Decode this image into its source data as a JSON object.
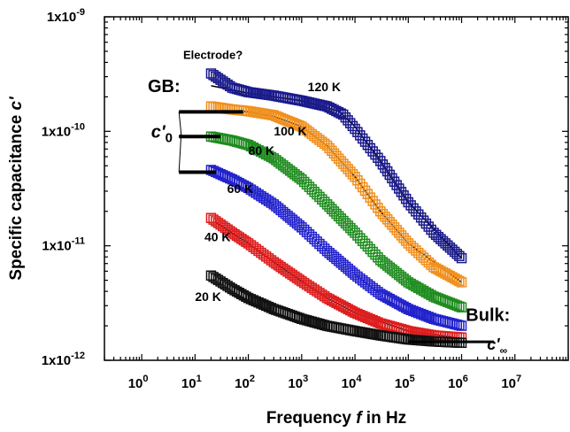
{
  "chart_data": {
    "type": "scatter",
    "title": "",
    "xlabel": {
      "pre": "Frequency ",
      "var": "f",
      "post": " in Hz"
    },
    "ylabel": {
      "pre": "Specific capacitance ",
      "var": "c'"
    },
    "x_scale": "log",
    "y_scale": "log",
    "xlim": [
      0.2,
      100000000
    ],
    "ylim": [
      1e-12,
      1e-09
    ],
    "x_ticks": [
      {
        "value": 1,
        "base": "10",
        "exp": "0"
      },
      {
        "value": 10,
        "base": "10",
        "exp": "1"
      },
      {
        "value": 100,
        "base": "10",
        "exp": "2"
      },
      {
        "value": 1000,
        "base": "10",
        "exp": "3"
      },
      {
        "value": 10000,
        "base": "10",
        "exp": "4"
      },
      {
        "value": 100000,
        "base": "10",
        "exp": "5"
      },
      {
        "value": 1000000,
        "base": "10",
        "exp": "6"
      },
      {
        "value": 10000000,
        "base": "10",
        "exp": "7"
      }
    ],
    "y_ticks": [
      {
        "value": 1e-12,
        "base": "1x10",
        "exp": "-12"
      },
      {
        "value": 1e-11,
        "base": "1x10",
        "exp": "-11"
      },
      {
        "value": 1e-10,
        "base": "1x10",
        "exp": "-10"
      },
      {
        "value": 1e-09,
        "base": "1x10",
        "exp": "-9"
      }
    ],
    "marker": "open-square",
    "series": [
      {
        "name": "120 K",
        "color": "#1a1a8c",
        "points": [
          [
            20,
            3.2e-10
          ],
          [
            50,
            2.4e-10
          ],
          [
            100,
            2.2e-10
          ],
          [
            300,
            2.05e-10
          ],
          [
            1000,
            1.85e-10
          ],
          [
            3000,
            1.65e-10
          ],
          [
            6000,
            1.4e-10
          ],
          [
            10000,
            1.05e-10
          ],
          [
            30000,
            5.5e-11
          ],
          [
            100000,
            2.4e-11
          ],
          [
            300000,
            1.3e-11
          ],
          [
            1000000,
            7.8e-12
          ]
        ],
        "fit": [
          [
            20,
            2.5e-10
          ],
          [
            100,
            2.15e-10
          ],
          [
            1000,
            1.85e-10
          ],
          [
            5000,
            1.5e-10
          ],
          [
            10000,
            1.1e-10
          ],
          [
            30000,
            5.5e-11
          ],
          [
            100000,
            2.4e-11
          ],
          [
            1000000,
            7.8e-12
          ]
        ]
      },
      {
        "name": "100 K",
        "color": "#f0901e",
        "points": [
          [
            20,
            1.65e-10
          ],
          [
            50,
            1.55e-10
          ],
          [
            100,
            1.5e-10
          ],
          [
            300,
            1.38e-10
          ],
          [
            1000,
            1.1e-10
          ],
          [
            3000,
            7.5e-11
          ],
          [
            10000,
            4e-11
          ],
          [
            30000,
            2e-11
          ],
          [
            100000,
            1.05e-11
          ],
          [
            300000,
            6.5e-12
          ],
          [
            1000000,
            4.8e-12
          ]
        ],
        "fit": [
          [
            30,
            1.52e-10
          ],
          [
            100,
            1.48e-10
          ],
          [
            300,
            1.35e-10
          ],
          [
            1000,
            1.1e-10
          ],
          [
            3000,
            7.5e-11
          ],
          [
            10000,
            4e-11
          ],
          [
            30000,
            2e-11
          ],
          [
            100000,
            1.05e-11
          ],
          [
            1000000,
            4.8e-12
          ]
        ]
      },
      {
        "name": "80 K",
        "color": "#1e8c1e",
        "points": [
          [
            20,
            9e-11
          ],
          [
            50,
            8.3e-11
          ],
          [
            100,
            7.6e-11
          ],
          [
            300,
            5.8e-11
          ],
          [
            1000,
            3.8e-11
          ],
          [
            3000,
            2.3e-11
          ],
          [
            10000,
            1.3e-11
          ],
          [
            30000,
            7.5e-12
          ],
          [
            100000,
            4.8e-12
          ],
          [
            300000,
            3.6e-12
          ],
          [
            1000000,
            2.9e-12
          ]
        ]
      },
      {
        "name": "60 K",
        "color": "#2222cc",
        "points": [
          [
            20,
            4.6e-11
          ],
          [
            50,
            3.8e-11
          ],
          [
            100,
            3.2e-11
          ],
          [
            300,
            2.3e-11
          ],
          [
            1000,
            1.45e-11
          ],
          [
            3000,
            9e-12
          ],
          [
            10000,
            5.6e-12
          ],
          [
            30000,
            3.8e-12
          ],
          [
            100000,
            2.8e-12
          ],
          [
            300000,
            2.3e-12
          ],
          [
            1000000,
            2e-12
          ]
        ]
      },
      {
        "name": "40 K",
        "color": "#dd1e1e",
        "points": [
          [
            20,
            1.75e-11
          ],
          [
            50,
            1.3e-11
          ],
          [
            100,
            1.05e-11
          ],
          [
            300,
            7.2e-12
          ],
          [
            1000,
            4.9e-12
          ],
          [
            3000,
            3.5e-12
          ],
          [
            10000,
            2.6e-12
          ],
          [
            30000,
            2.1e-12
          ],
          [
            100000,
            1.8e-12
          ],
          [
            300000,
            1.65e-12
          ],
          [
            1000000,
            1.58e-12
          ]
        ],
        "fit": [
          [
            25,
            1.6e-11
          ],
          [
            100,
            1.05e-11
          ],
          [
            300,
            7.2e-12
          ],
          [
            1000,
            4.9e-12
          ],
          [
            3000,
            3.5e-12
          ],
          [
            10000,
            2.6e-12
          ],
          [
            100000,
            1.8e-12
          ],
          [
            1000000,
            1.55e-12
          ]
        ]
      },
      {
        "name": "20 K",
        "color": "#111111",
        "points": [
          [
            20,
            5.5e-12
          ],
          [
            50,
            4.2e-12
          ],
          [
            100,
            3.5e-12
          ],
          [
            300,
            2.8e-12
          ],
          [
            1000,
            2.3e-12
          ],
          [
            3000,
            2e-12
          ],
          [
            10000,
            1.8e-12
          ],
          [
            30000,
            1.65e-12
          ],
          [
            100000,
            1.52e-12
          ],
          [
            300000,
            1.46e-12
          ],
          [
            1000000,
            1.42e-12
          ]
        ]
      }
    ],
    "series_labels": [
      {
        "text": "120 K",
        "x": 1300,
        "y": 2.25e-10
      },
      {
        "text": "100 K",
        "x": 300,
        "y": 9.2e-11
      },
      {
        "text": "80 K",
        "x": 100,
        "y": 6.2e-11
      },
      {
        "text": "60 K",
        "x": 40,
        "y": 2.9e-11
      },
      {
        "text": "40 K",
        "x": 15,
        "y": 1.1e-11
      },
      {
        "text": "20 K",
        "x": 10,
        "y": 3.3e-12
      }
    ],
    "annotations": {
      "electrode": {
        "text": "Electrode?",
        "x": 6,
        "y": 4.3e-10
      },
      "gb": {
        "text": "GB:",
        "x": 1.3,
        "y": 2.2e-10
      },
      "c0": {
        "sym": "c'",
        "sub": "0",
        "x": 1.5,
        "y": 8.8e-11
      },
      "bulk": {
        "text": "Bulk:",
        "x": 1200000,
        "y": 2.2e-12
      },
      "cinf": {
        "sym": "c'",
        "sub": "∞",
        "x": 3000000,
        "y": 1.4e-12
      }
    },
    "gb_plateaus": [
      {
        "y": 1.48e-10,
        "x": [
          5,
          80
        ]
      },
      {
        "y": 9e-11,
        "x": [
          5,
          30
        ]
      },
      {
        "y": 4.4e-11,
        "x": [
          5,
          25
        ]
      }
    ],
    "bulk_line": {
      "y": 1.45e-12,
      "x": [
        100000,
        4000000
      ]
    }
  }
}
